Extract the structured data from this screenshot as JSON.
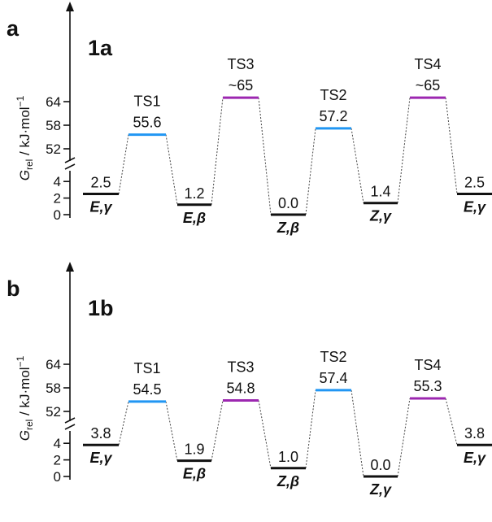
{
  "chart_data": [
    {
      "type": "energy_profile",
      "panel": "a",
      "title": "1a",
      "ylabel_main": "G",
      "ylabel_sub": "rel",
      "ylabel_rest": " / kJ·mol",
      "ylabel_sup": "−1",
      "yticks_lower": [
        "0",
        "2",
        "4"
      ],
      "yticks_upper": [
        "52",
        "58",
        "64"
      ],
      "levels": [
        {
          "name": "E,γ",
          "value": 2.5,
          "label": "2.5",
          "kind": "minimum"
        },
        {
          "name": "TS1",
          "value": 55.6,
          "label": "55.6",
          "kind": "ts"
        },
        {
          "name": "E,β",
          "value": 1.2,
          "label": "1.2",
          "kind": "minimum"
        },
        {
          "name": "TS3",
          "value": 65,
          "label": "~65",
          "kind": "ts"
        },
        {
          "name": "Z,β",
          "value": 0.0,
          "label": "0.0",
          "kind": "minimum"
        },
        {
          "name": "TS2",
          "value": 57.2,
          "label": "57.2",
          "kind": "ts"
        },
        {
          "name": "Z,γ",
          "value": 1.4,
          "label": "1.4",
          "kind": "minimum"
        },
        {
          "name": "TS4",
          "value": 65,
          "label": "~65",
          "kind": "ts"
        },
        {
          "name": "E,γ",
          "value": 2.5,
          "label": "2.5",
          "kind": "minimum"
        }
      ]
    },
    {
      "type": "energy_profile",
      "panel": "b",
      "title": "1b",
      "ylabel_main": "G",
      "ylabel_sub": "rel",
      "ylabel_rest": " / kJ·mol",
      "ylabel_sup": "−1",
      "yticks_lower": [
        "0",
        "2",
        "4"
      ],
      "yticks_upper": [
        "52",
        "58",
        "64"
      ],
      "levels": [
        {
          "name": "E,γ",
          "value": 3.8,
          "label": "3.8",
          "kind": "minimum"
        },
        {
          "name": "TS1",
          "value": 54.5,
          "label": "54.5",
          "kind": "ts"
        },
        {
          "name": "E,β",
          "value": 1.9,
          "label": "1.9",
          "kind": "minimum"
        },
        {
          "name": "TS3",
          "value": 54.8,
          "label": "54.8",
          "kind": "ts"
        },
        {
          "name": "Z,β",
          "value": 1.0,
          "label": "1.0",
          "kind": "minimum"
        },
        {
          "name": "TS2",
          "value": 57.4,
          "label": "57.4",
          "kind": "ts"
        },
        {
          "name": "Z,γ",
          "value": 0.0,
          "label": "0.0",
          "kind": "minimum"
        },
        {
          "name": "TS4",
          "value": 55.3,
          "label": "55.3",
          "kind": "ts"
        },
        {
          "name": "E,γ",
          "value": 3.8,
          "label": "3.8",
          "kind": "minimum"
        }
      ]
    }
  ],
  "colors": {
    "minimum": "#111111",
    "TS1": "#2196f3",
    "TS2": "#2196f3",
    "TS3": "#9c27b0",
    "TS4": "#9c27b0"
  }
}
